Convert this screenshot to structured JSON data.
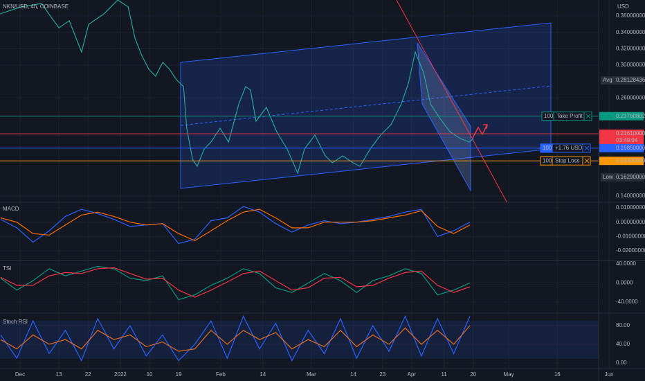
{
  "chart_data": [
    {
      "type": "line",
      "title": "NKN/USD, 4h, COINBASE",
      "axis_unit": "USD",
      "color": "#26a69a",
      "xlim": [
        -6.2,
        193.1
      ],
      "xticks": [
        {
          "value": 0,
          "label": "Dec"
        },
        {
          "value": 12,
          "label": "13"
        },
        {
          "value": 21,
          "label": "22"
        },
        {
          "value": 31,
          "label": "2022"
        },
        {
          "value": 40,
          "label": "10"
        },
        {
          "value": 49,
          "label": "19"
        },
        {
          "value": 62,
          "label": "Feb"
        },
        {
          "value": 75,
          "label": "14"
        },
        {
          "value": 90,
          "label": "Mar"
        },
        {
          "value": 103,
          "label": "14"
        },
        {
          "value": 112,
          "label": "23"
        },
        {
          "value": 121,
          "label": "Apr"
        },
        {
          "value": 131,
          "label": "11"
        },
        {
          "value": 140,
          "label": "20"
        },
        {
          "value": 151,
          "label": "May"
        },
        {
          "value": 166,
          "label": "16"
        },
        {
          "value": 182,
          "label": "Jun"
        }
      ],
      "ylim": [
        0.1324,
        0.3795
      ],
      "yticks": [
        {
          "value": 0.36,
          "label": "0.36000000"
        },
        {
          "value": 0.34,
          "label": "0.34000000"
        },
        {
          "value": 0.32,
          "label": "0.32000000"
        },
        {
          "value": 0.3,
          "label": "0.30000000"
        },
        {
          "value": 0.26,
          "label": "0.26000000"
        },
        {
          "value": 0.14,
          "label": "0.14000000"
        }
      ],
      "x": [
        -6.2,
        0.2,
        6.6,
        12.0,
        15.2,
        19.0,
        21.2,
        25.9,
        30.2,
        33.4,
        35.5,
        37.6,
        39.8,
        41.9,
        44.1,
        46.2,
        48.3,
        50.5,
        51.5,
        53.3,
        54.7,
        56.9,
        59.0,
        61.8,
        64.4,
        67.6,
        69.7,
        71.2,
        72.9,
        76.1,
        79.3,
        82.5,
        85.8,
        87.9,
        91.1,
        94.3,
        96.5,
        99.7,
        102.9,
        105.0,
        108.2,
        111.4,
        114.6,
        117.8,
        120.0,
        122.1,
        124.7,
        126.8,
        129.6,
        132.8,
        136.0,
        138.8,
        140.1
      ],
      "values": [
        0.3625,
        0.371,
        0.3752,
        0.3456,
        0.3541,
        0.316,
        0.3498,
        0.3625,
        0.3795,
        0.371,
        0.3329,
        0.3118,
        0.2949,
        0.2864,
        0.3033,
        0.2949,
        0.2822,
        0.2737,
        0.2229,
        0.1849,
        0.1764,
        0.1976,
        0.206,
        0.2229,
        0.206,
        0.2526,
        0.2737,
        0.2695,
        0.2314,
        0.2483,
        0.2187,
        0.1976,
        0.168,
        0.1976,
        0.2145,
        0.1891,
        0.1806,
        0.1891,
        0.1806,
        0.1764,
        0.1976,
        0.2145,
        0.2272,
        0.2526,
        0.2779,
        0.316,
        0.2906,
        0.2526,
        0.2356,
        0.2187,
        0.2103,
        0.206,
        0.2103
      ],
      "levels": [
        {
          "kind": "tag",
          "name": "Avg",
          "value": 0.28128436,
          "color": "#2a2e39"
        },
        {
          "kind": "order",
          "qty": 100,
          "name": "Take Profit",
          "value": 0.23760802,
          "color": "#089981"
        },
        {
          "kind": "price",
          "value": 0.2161,
          "label": "0.21610000",
          "timer": "03:49:04",
          "color": "#f23645"
        },
        {
          "kind": "order",
          "qty": 100,
          "name": "+1.76 USD",
          "value": 0.1985,
          "label": "0.19850000",
          "color": "#2962ff"
        },
        {
          "kind": "order",
          "qty": 100,
          "name": "Stop Loss",
          "value": 0.183,
          "label": "0.18300000",
          "color": "#ff9800"
        },
        {
          "kind": "tag",
          "name": "Low",
          "value": 0.1629,
          "label": "0.16290000",
          "color": "#2a2e39"
        }
      ]
    },
    {
      "type": "line",
      "title": "MACD",
      "ylim": [
        -0.0268,
        0.0139
      ],
      "yticks": [
        {
          "value": 0.01,
          "label": "0.01000000"
        },
        {
          "value": 0,
          "label": "0.00000000"
        },
        {
          "value": -0.01,
          "label": "-0.01000000"
        },
        {
          "value": -0.02,
          "label": "-0.02000000"
        }
      ],
      "x": [
        -6,
        -1,
        4,
        9,
        14,
        19,
        24,
        29,
        34,
        39,
        44,
        49,
        54,
        59,
        64,
        69,
        74,
        79,
        84,
        89,
        94,
        99,
        104,
        109,
        114,
        119,
        124,
        129,
        134,
        139
      ],
      "series": [
        {
          "color": "#2962ff",
          "values": [
            0.002,
            -0.004,
            -0.014,
            -0.006,
            0.004,
            0.009,
            0.006,
            0.002,
            -0.003,
            -0.002,
            -0.001,
            -0.015,
            -0.012,
            0.001,
            0.003,
            0.011,
            0.007,
            -0.001,
            -0.007,
            -0.002,
            0.001,
            -0.001,
            0.0,
            0.002,
            0.004,
            0.007,
            0.009,
            -0.01,
            -0.006,
            0.0
          ]
        },
        {
          "color": "#ff6d00",
          "values": [
            0.003,
            0.0,
            -0.008,
            -0.009,
            -0.002,
            0.005,
            0.007,
            0.004,
            0.0,
            -0.002,
            -0.001,
            -0.008,
            -0.013,
            -0.006,
            0.001,
            0.007,
            0.009,
            0.003,
            -0.004,
            -0.004,
            0.0,
            0.0,
            0.0,
            0.001,
            0.003,
            0.005,
            0.008,
            -0.003,
            -0.008,
            -0.002
          ]
        }
      ]
    },
    {
      "type": "line",
      "title": "TSI",
      "ylim": [
        -63.3,
        47.3
      ],
      "yticks": [
        {
          "value": 40,
          "label": "40.0000"
        },
        {
          "value": 0,
          "label": "0.0000"
        },
        {
          "value": -40,
          "label": "-40.0000"
        }
      ],
      "x": [
        -6,
        -1,
        4,
        9,
        14,
        19,
        24,
        29,
        34,
        39,
        44,
        49,
        54,
        59,
        64,
        69,
        74,
        79,
        84,
        89,
        94,
        99,
        104,
        109,
        114,
        119,
        124,
        129,
        134,
        139
      ],
      "series": [
        {
          "color": "#089981",
          "values": [
            10,
            -15,
            5,
            30,
            15,
            25,
            35,
            30,
            10,
            5,
            15,
            -35,
            -25,
            -5,
            10,
            30,
            20,
            -10,
            -20,
            0,
            20,
            5,
            -20,
            5,
            15,
            30,
            20,
            -25,
            -15,
            0
          ]
        },
        {
          "color": "#f23645",
          "values": [
            12,
            -5,
            -5,
            15,
            22,
            20,
            30,
            32,
            20,
            8,
            10,
            -15,
            -30,
            -15,
            2,
            20,
            25,
            5,
            -15,
            -10,
            10,
            12,
            -8,
            -5,
            10,
            22,
            25,
            -5,
            -20,
            -8
          ]
        }
      ]
    },
    {
      "type": "line",
      "title": "Stoch RSI",
      "ylim": [
        -11.9,
        106.7
      ],
      "yticks": [
        {
          "value": 80,
          "label": "80.00"
        },
        {
          "value": 40,
          "label": "40.00"
        },
        {
          "value": 0,
          "label": "0.00"
        }
      ],
      "x": [
        -6,
        -1,
        4,
        9,
        14,
        19,
        24,
        29,
        34,
        39,
        44,
        49,
        54,
        59,
        64,
        69,
        74,
        79,
        84,
        89,
        94,
        99,
        104,
        109,
        114,
        119,
        124,
        129,
        134,
        139
      ],
      "series": [
        {
          "color": "#2962ff",
          "values": [
            60,
            10,
            90,
            20,
            70,
            5,
            95,
            30,
            80,
            15,
            60,
            5,
            40,
            90,
            10,
            100,
            30,
            85,
            5,
            70,
            20,
            95,
            10,
            80,
            25,
            100,
            15,
            95,
            20,
            100
          ]
        },
        {
          "color": "#ff6d00",
          "values": [
            50,
            30,
            60,
            40,
            50,
            30,
            70,
            50,
            60,
            35,
            45,
            25,
            30,
            70,
            40,
            70,
            50,
            65,
            30,
            50,
            35,
            70,
            35,
            60,
            40,
            75,
            40,
            70,
            40,
            80
          ]
        }
      ]
    }
  ]
}
